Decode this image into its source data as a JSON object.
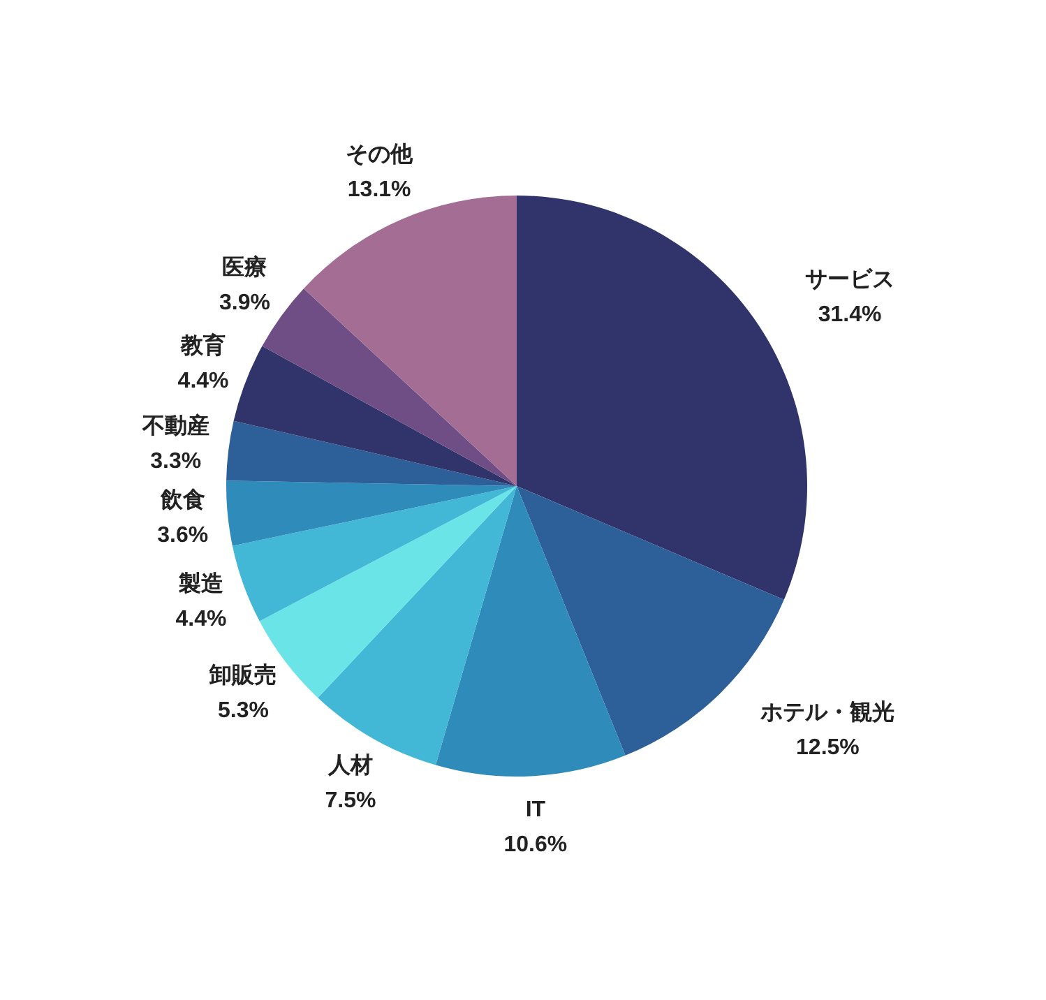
{
  "chart_data": {
    "type": "pie",
    "categories": [
      "サービス",
      "ホテル・観光",
      "IT",
      "人材",
      "卸販売",
      "製造",
      "飲食",
      "不動産",
      "教育",
      "医療",
      "その他"
    ],
    "values": [
      31.4,
      12.5,
      10.6,
      7.5,
      5.3,
      4.4,
      3.6,
      3.3,
      4.4,
      3.9,
      13.1
    ],
    "value_labels": [
      "31.4%",
      "12.5%",
      "10.6%",
      "7.5%",
      "5.3%",
      "4.4%",
      "3.6%",
      "3.3%",
      "4.4%",
      "3.9%",
      "13.1%"
    ],
    "colors": [
      "#31346b",
      "#2d5f99",
      "#2e8bba",
      "#42b7d6",
      "#6ae4e6",
      "#42b7d6",
      "#2e8bba",
      "#2d5f99",
      "#31346b",
      "#6f4d85",
      "#a36d94"
    ]
  }
}
